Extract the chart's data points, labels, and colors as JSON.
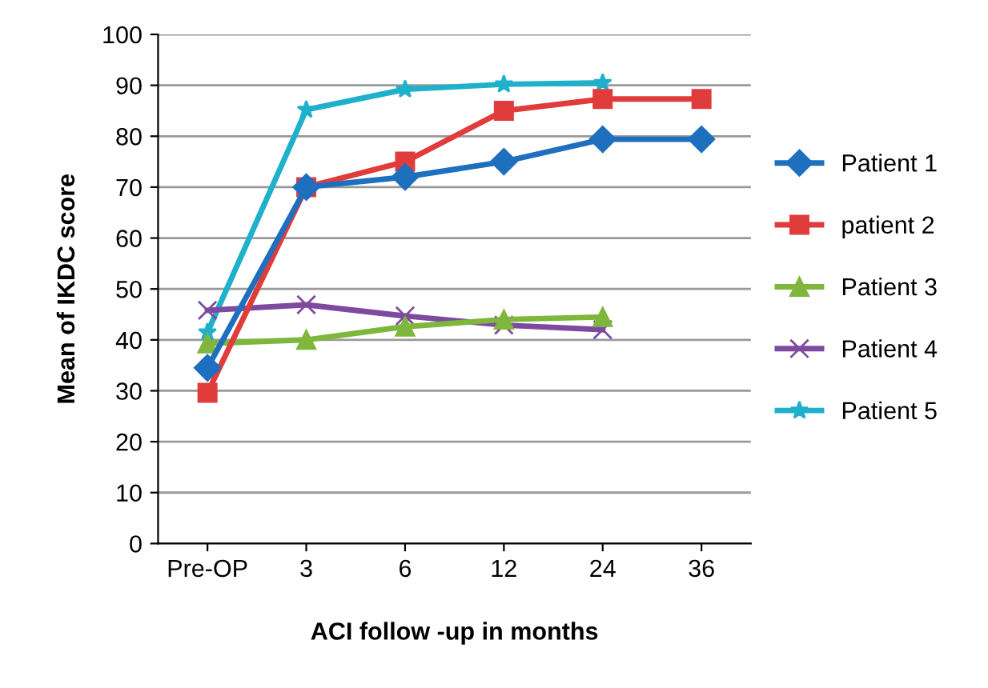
{
  "chart_data": {
    "type": "line",
    "xlabel": "ACI follow -up in months",
    "ylabel": "Mean of IKDC score",
    "categories": [
      "Pre-OP",
      "3",
      "6",
      "12",
      "24",
      "36"
    ],
    "series": [
      {
        "name": "Patient 1",
        "color": "#1f6fbf",
        "marker": "diamond",
        "values": [
          34.5,
          70,
          72,
          75,
          79.4,
          79.4
        ]
      },
      {
        "name": "patient 2",
        "color": "#e03c3c",
        "marker": "square",
        "values": [
          29.6,
          70,
          75,
          85,
          87.3,
          87.3
        ]
      },
      {
        "name": "Patient 3",
        "color": "#7fb63c",
        "marker": "triangle",
        "values": [
          39.3,
          40,
          42.6,
          44,
          44.5,
          null
        ]
      },
      {
        "name": "Patient 4",
        "color": "#7d4aa0",
        "marker": "cross",
        "values": [
          45.8,
          46.9,
          44.7,
          42.9,
          42,
          null
        ]
      },
      {
        "name": "Patient 5",
        "color": "#1fb0cc",
        "marker": "star",
        "values": [
          41.5,
          85.2,
          89.2,
          90.2,
          90.5,
          null
        ]
      }
    ],
    "ylim": [
      0,
      100
    ],
    "yticks": [
      0,
      10,
      20,
      30,
      40,
      50,
      60,
      70,
      80,
      90,
      100
    ],
    "grid": "y",
    "legend": "right"
  }
}
